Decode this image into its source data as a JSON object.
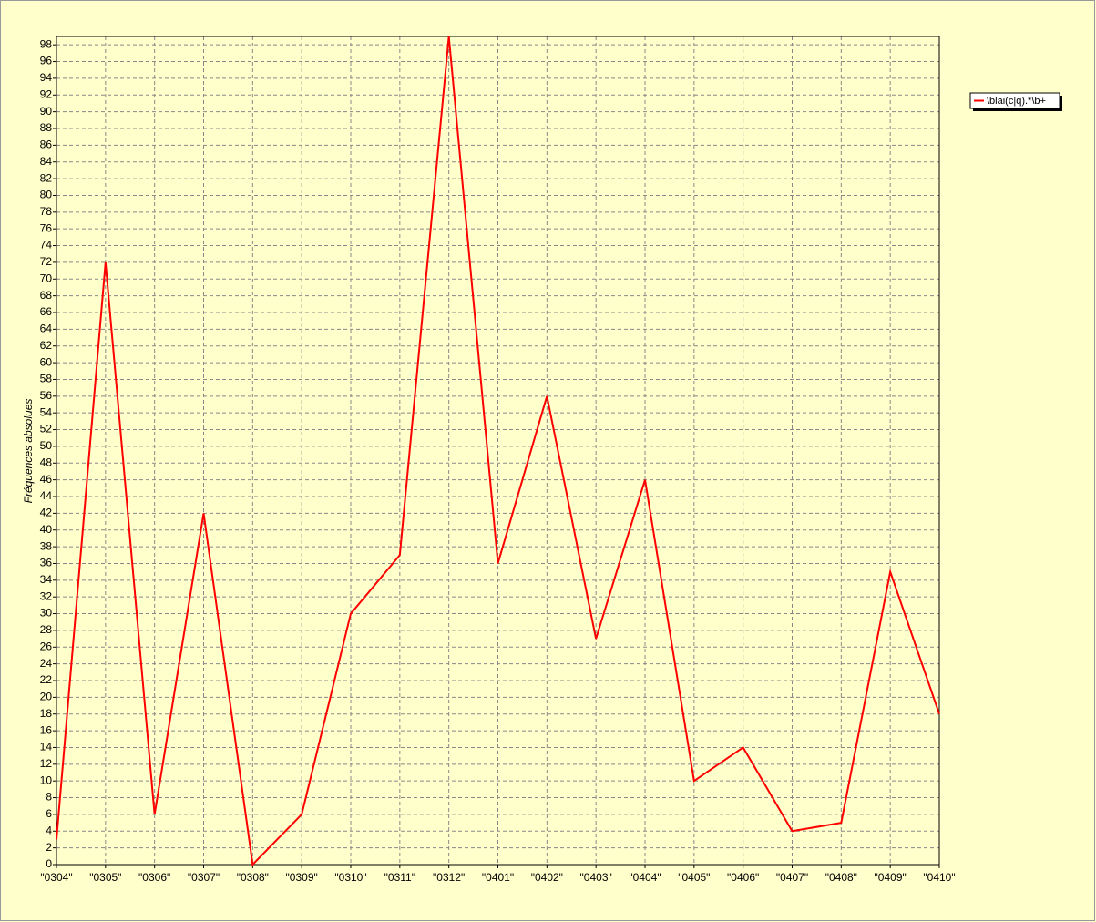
{
  "chart_data": {
    "type": "line",
    "y_label": "Fréquences absolues",
    "categories": [
      "\"0304\"",
      "\"0305\"",
      "\"0306\"",
      "\"0307\"",
      "\"0308\"",
      "\"0309\"",
      "\"0310\"",
      "\"0311\"",
      "\"0312\"",
      "\"0401\"",
      "\"0402\"",
      "\"0403\"",
      "\"0404\"",
      "\"0405\"",
      "\"0406\"",
      "\"0407\"",
      "\"0408\"",
      "\"0409\"",
      "\"0410\""
    ],
    "series": [
      {
        "name": "\\blai(c|q).*\\b+",
        "color": "#ff0000",
        "values": [
          3,
          72,
          6,
          42,
          0,
          6,
          30,
          37,
          99,
          36,
          56,
          27,
          46,
          10,
          14,
          4,
          5,
          35,
          18
        ]
      }
    ],
    "ylim": [
      0,
      99
    ],
    "yticks": [
      0,
      2,
      4,
      6,
      8,
      10,
      12,
      14,
      16,
      18,
      20,
      22,
      24,
      26,
      28,
      30,
      32,
      34,
      36,
      38,
      40,
      42,
      44,
      46,
      48,
      50,
      52,
      54,
      56,
      58,
      60,
      62,
      64,
      66,
      68,
      70,
      72,
      74,
      76,
      78,
      80,
      82,
      84,
      86,
      88,
      90,
      92,
      94,
      96,
      98
    ],
    "grid": true
  }
}
